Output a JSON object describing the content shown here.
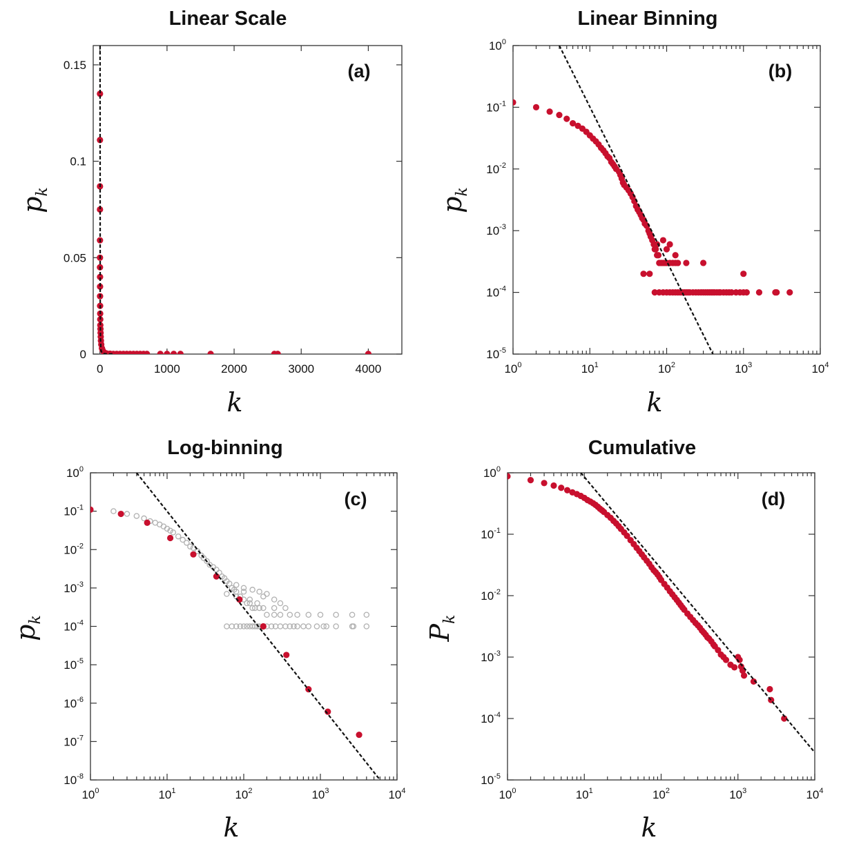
{
  "chart_data": [
    {
      "id": "a",
      "type": "scatter",
      "title": "Linear Scale",
      "panel_label": "(a)",
      "xlabel": "k",
      "ylabel_main": "p",
      "ylabel_sub": "k",
      "xscale": "linear",
      "yscale": "linear",
      "xlim": [
        -100,
        4500
      ],
      "ylim": [
        0,
        0.16
      ],
      "xticks": [
        0,
        1000,
        2000,
        3000,
        4000
      ],
      "xtick_labels": [
        "0",
        "1000",
        "2000",
        "3000",
        "4000"
      ],
      "yticks": [
        0,
        0.05,
        0.1,
        0.15
      ],
      "ytick_labels": [
        "0",
        "0.05",
        "0.1",
        "0.15"
      ],
      "grid": false,
      "series": [
        {
          "style": "red-filled",
          "x": [
            1,
            1,
            1,
            1,
            1,
            1,
            1,
            2,
            2,
            2,
            3,
            4,
            5,
            6,
            8,
            10,
            12,
            15,
            20,
            30,
            40,
            60,
            80,
            100,
            150,
            200,
            250,
            300,
            350,
            400,
            450,
            500,
            550,
            600,
            650,
            700,
            900,
            1000,
            1100,
            1200,
            1650,
            2600,
            2650,
            4000
          ],
          "y": [
            0.135,
            0.111,
            0.087,
            0.075,
            0.059,
            0.05,
            0.045,
            0.04,
            0.035,
            0.03,
            0.025,
            0.021,
            0.018,
            0.015,
            0.013,
            0.011,
            0.009,
            0.007,
            0.005,
            0.003,
            0.002,
            0.001,
            0.0005,
            0.0003,
            0.0002,
            0.0001,
            0.0001,
            0.0001,
            0.0001,
            0.0001,
            0.0001,
            0.0001,
            0.0001,
            0.0001,
            0.0001,
            0.0001,
            0.0001,
            0.0001,
            0.0001,
            0.0001,
            0.0001,
            0.0001,
            0.0001,
            0.0001
          ]
        }
      ],
      "fit_line": {
        "x": [
          2,
          4,
          8,
          15,
          30,
          60,
          100,
          150,
          200
        ],
        "y": [
          0.16,
          0.03,
          0.008,
          0.002,
          0.0006,
          0.0002,
          0.0001,
          5e-05,
          3e-05
        ]
      }
    },
    {
      "id": "b",
      "type": "scatter",
      "title": "Linear Binning",
      "panel_label": "(b)",
      "xlabel": "k",
      "ylabel_main": "p",
      "ylabel_sub": "k",
      "xscale": "log",
      "yscale": "log",
      "xlim_exp": [
        0,
        4
      ],
      "ylim_exp": [
        -5,
        0
      ],
      "xtick_exps": [
        "0",
        "1",
        "2",
        "3",
        "4"
      ],
      "ytick_exps": [
        "0",
        "-1",
        "-2",
        "-3",
        "-4",
        "-5"
      ],
      "grid": false,
      "series": [
        {
          "style": "red-filled",
          "x": [
            1,
            2,
            3,
            4,
            5,
            6,
            7,
            8,
            9,
            10,
            11,
            12,
            13,
            14,
            15,
            16,
            17,
            18,
            19,
            20,
            21,
            22,
            24,
            25,
            26,
            27,
            28,
            30,
            32,
            34,
            36,
            38,
            40,
            42,
            44,
            46,
            48,
            50,
            52,
            55,
            58,
            60,
            62,
            65,
            68,
            70,
            72,
            75,
            78,
            80,
            85,
            90,
            95,
            100,
            110,
            120,
            130,
            140,
            180,
            300,
            1000,
            50,
            60,
            70,
            80,
            90,
            100,
            110,
            120,
            130,
            140,
            150,
            160,
            170,
            180,
            190,
            200,
            220,
            240,
            260,
            280,
            300,
            320,
            340,
            360,
            380,
            400,
            420,
            450,
            480,
            500,
            550,
            600,
            650,
            700,
            800,
            900,
            1000,
            1100,
            1600,
            2600,
            2700,
            4000,
            75,
            100,
            130,
            90,
            110
          ],
          "y": [
            0.12,
            0.1,
            0.085,
            0.075,
            0.065,
            0.055,
            0.05,
            0.045,
            0.04,
            0.035,
            0.031,
            0.028,
            0.025,
            0.022,
            0.02,
            0.018,
            0.016,
            0.015,
            0.013,
            0.012,
            0.011,
            0.01,
            0.009,
            0.008,
            0.007,
            0.006,
            0.0055,
            0.005,
            0.0045,
            0.004,
            0.0035,
            0.003,
            0.0025,
            0.0022,
            0.002,
            0.0018,
            0.0016,
            0.0015,
            0.0013,
            0.0012,
            0.001,
            0.0009,
            0.0008,
            0.0007,
            0.0006,
            0.0005,
            0.0005,
            0.0004,
            0.0004,
            0.0003,
            0.0003,
            0.0003,
            0.0003,
            0.0003,
            0.0003,
            0.0003,
            0.0003,
            0.0003,
            0.0003,
            0.0003,
            0.0002,
            0.0002,
            0.0002,
            0.0001,
            0.0001,
            0.0001,
            0.0001,
            0.0001,
            0.0001,
            0.0001,
            0.0001,
            0.0001,
            0.0001,
            0.0001,
            0.0001,
            0.0001,
            0.0001,
            0.0001,
            0.0001,
            0.0001,
            0.0001,
            0.0001,
            0.0001,
            0.0001,
            0.0001,
            0.0001,
            0.0001,
            0.0001,
            0.0001,
            0.0001,
            0.0001,
            0.0001,
            0.0001,
            0.0001,
            0.0001,
            0.0001,
            0.0001,
            0.0001,
            0.0001,
            0.0001,
            0.0001,
            0.0001,
            0.0001,
            0.0006,
            0.0005,
            0.0004,
            0.0007,
            0.0006
          ]
        }
      ],
      "fit_line": {
        "x": [
          4,
          400
        ],
        "y": [
          1,
          1e-05
        ]
      }
    },
    {
      "id": "c",
      "type": "scatter",
      "title": "Log-binning",
      "panel_label": "(c)",
      "xlabel": "k",
      "ylabel_main": "p",
      "ylabel_sub": "k",
      "xscale": "log",
      "yscale": "log",
      "xlim_exp": [
        0,
        4
      ],
      "ylim_exp": [
        -8,
        0
      ],
      "xtick_exps": [
        "0",
        "1",
        "2",
        "3",
        "4"
      ],
      "ytick_exps": [
        "0",
        "-1",
        "-2",
        "-3",
        "-4",
        "-5",
        "-6",
        "-7",
        "-8"
      ],
      "grid": false,
      "series": [
        {
          "style": "gray-open",
          "x": [
            2,
            3,
            4,
            5,
            6,
            7,
            8,
            9,
            10,
            11,
            12,
            14,
            16,
            18,
            20,
            22,
            25,
            28,
            30,
            33,
            36,
            40,
            44,
            48,
            52,
            56,
            60,
            65,
            70,
            75,
            80,
            90,
            100,
            110,
            120,
            130,
            140,
            160,
            180,
            200,
            250,
            300,
            400,
            500,
            700,
            1000,
            1600,
            2600,
            4000,
            60,
            70,
            80,
            90,
            100,
            110,
            120,
            130,
            140,
            150,
            160,
            180,
            200,
            230,
            260,
            300,
            350,
            400,
            450,
            500,
            600,
            700,
            900,
            1100,
            1200,
            1600,
            2600,
            2700,
            4000,
            60,
            80,
            100,
            120,
            150,
            180,
            250,
            300,
            350,
            80,
            100,
            130,
            160,
            200,
            250
          ],
          "y": [
            0.1,
            0.085,
            0.075,
            0.065,
            0.055,
            0.05,
            0.045,
            0.04,
            0.035,
            0.031,
            0.028,
            0.022,
            0.018,
            0.015,
            0.012,
            0.011,
            0.009,
            0.007,
            0.006,
            0.005,
            0.004,
            0.0035,
            0.003,
            0.0025,
            0.002,
            0.0018,
            0.0015,
            0.0013,
            0.001,
            0.0009,
            0.0008,
            0.0006,
            0.0005,
            0.0004,
            0.0004,
            0.0003,
            0.0003,
            0.0003,
            0.0003,
            0.0002,
            0.0002,
            0.0002,
            0.0002,
            0.0002,
            0.0002,
            0.0002,
            0.0002,
            0.0002,
            0.0002,
            0.0001,
            0.0001,
            0.0001,
            0.0001,
            0.0001,
            0.0001,
            0.0001,
            0.0001,
            0.0001,
            0.0001,
            0.0001,
            0.0001,
            0.0001,
            0.0001,
            0.0001,
            0.0001,
            0.0001,
            0.0001,
            0.0001,
            0.0001,
            0.0001,
            0.0001,
            0.0001,
            0.0001,
            0.0001,
            0.0001,
            0.0001,
            0.0001,
            0.0001,
            0.0007,
            0.0006,
            0.0008,
            0.0005,
            0.0004,
            0.0006,
            0.0003,
            0.0004,
            0.0003,
            0.0012,
            0.001,
            0.0009,
            0.0008,
            0.0007,
            0.0005
          ]
        },
        {
          "style": "red-filled",
          "x": [
            1,
            2.5,
            5.5,
            11,
            22,
            44,
            88,
            180,
            360,
            700,
            1250,
            3200
          ],
          "y": [
            0.11,
            0.085,
            0.05,
            0.02,
            0.0075,
            0.002,
            0.0005,
            0.0001,
            1.8e-05,
            2.3e-06,
            6e-07,
            1.5e-07
          ]
        }
      ],
      "fit_line": {
        "x": [
          4,
          6000
        ],
        "y": [
          1,
          1e-08
        ]
      }
    },
    {
      "id": "d",
      "type": "scatter",
      "title": "Cumulative",
      "panel_label": "(d)",
      "xlabel": "k",
      "ylabel_main": "P",
      "ylabel_sub": "k",
      "xscale": "log",
      "yscale": "log",
      "xlim_exp": [
        0,
        4
      ],
      "ylim_exp": [
        -5,
        0
      ],
      "xtick_exps": [
        "0",
        "1",
        "2",
        "3",
        "4"
      ],
      "ytick_exps": [
        "0",
        "-1",
        "-2",
        "-3",
        "-4",
        "-5"
      ],
      "grid": false,
      "series": [
        {
          "style": "red-filled",
          "x": [
            1,
            2,
            3,
            4,
            5,
            6,
            7,
            8,
            9,
            10,
            11,
            12,
            13,
            14,
            15,
            16,
            17,
            18,
            20,
            22,
            24,
            26,
            28,
            30,
            33,
            36,
            40,
            44,
            48,
            52,
            56,
            60,
            65,
            70,
            75,
            80,
            85,
            90,
            95,
            100,
            110,
            120,
            130,
            140,
            150,
            160,
            170,
            180,
            190,
            200,
            220,
            240,
            260,
            280,
            300,
            320,
            340,
            360,
            380,
            400,
            420,
            450,
            480,
            500,
            550,
            600,
            650,
            700,
            800,
            900,
            1000,
            1050,
            1100,
            1150,
            1200,
            1600,
            2600,
            2700,
            4000
          ],
          "y": [
            0.88,
            0.76,
            0.68,
            0.62,
            0.57,
            0.52,
            0.48,
            0.45,
            0.42,
            0.39,
            0.36,
            0.34,
            0.32,
            0.3,
            0.28,
            0.26,
            0.245,
            0.23,
            0.205,
            0.185,
            0.165,
            0.15,
            0.135,
            0.122,
            0.107,
            0.094,
            0.08,
            0.069,
            0.06,
            0.053,
            0.047,
            0.042,
            0.037,
            0.033,
            0.029,
            0.026,
            0.024,
            0.022,
            0.02,
            0.018,
            0.0155,
            0.0135,
            0.0118,
            0.0105,
            0.0094,
            0.0085,
            0.0077,
            0.007,
            0.0064,
            0.0059,
            0.0051,
            0.0045,
            0.004,
            0.0036,
            0.0033,
            0.003,
            0.0027,
            0.0025,
            0.0023,
            0.0021,
            0.002,
            0.0018,
            0.0016,
            0.0015,
            0.0013,
            0.0011,
            0.001,
            0.0009,
            0.00075,
            0.00068,
            0.001,
            0.0009,
            0.0007,
            0.0006,
            0.0005,
            0.0004,
            0.0003,
            0.0002,
            0.0001
          ]
        }
      ],
      "fit_line": {
        "x": [
          9,
          10000
        ],
        "y": [
          1,
          2.8e-05
        ]
      }
    }
  ]
}
